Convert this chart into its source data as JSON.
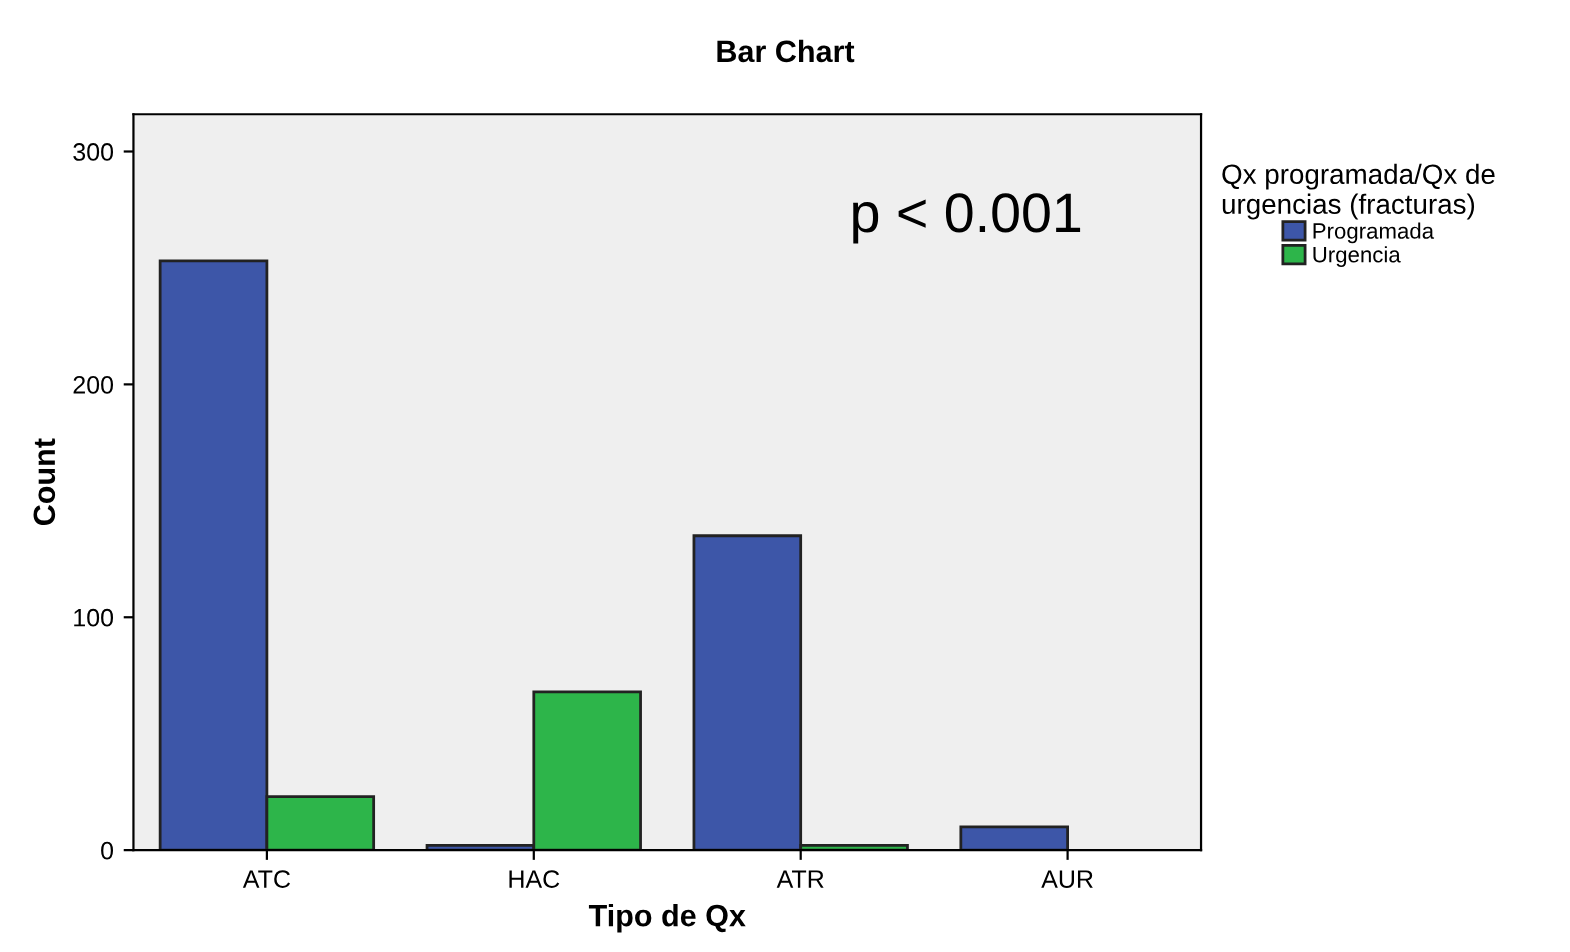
{
  "chart_data": {
    "type": "bar",
    "title": "Bar Chart",
    "xlabel": "Tipo de Qx",
    "ylabel": "Count",
    "legend_title": "Qx programada/Qx de\nurgencias (fracturas)",
    "categories": [
      "ATC",
      "HAC",
      "ATR",
      "AUR"
    ],
    "series": [
      {
        "name": "Programada",
        "color": "#3d56a8",
        "values": [
          253,
          2,
          135,
          10
        ]
      },
      {
        "name": "Urgencia",
        "color": "#2db54a",
        "values": [
          23,
          68,
          2,
          null
        ]
      }
    ],
    "ylim": [
      0,
      316
    ],
    "yticks": [
      0,
      100,
      200,
      300
    ],
    "grid": false,
    "legend": "top right",
    "annotations": [
      {
        "text": "p < 0.001"
      }
    ]
  }
}
